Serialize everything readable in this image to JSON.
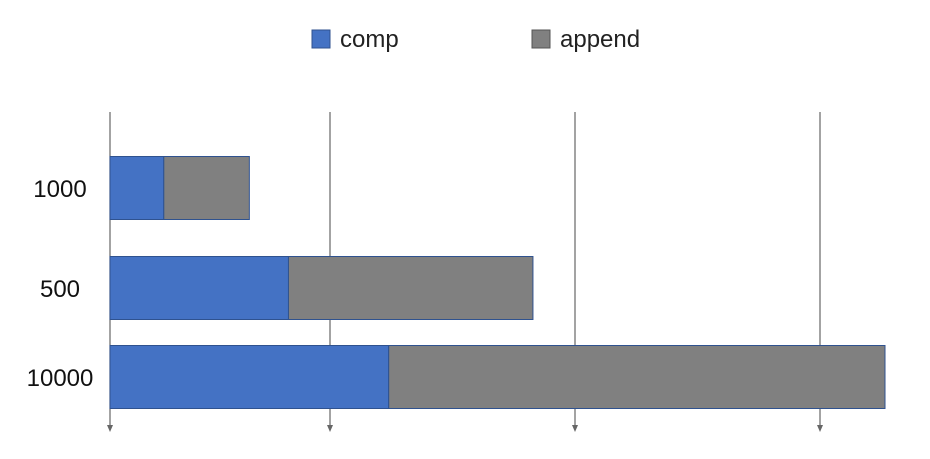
{
  "chart_data": {
    "type": "bar",
    "orientation": "horizontal",
    "stacked": true,
    "categories": [
      "1000",
      "500",
      "10000"
    ],
    "series": [
      {
        "name": "comp",
        "values": [
          22,
          73,
          114
        ],
        "color": "#4472C4"
      },
      {
        "name": "append",
        "values": [
          35,
          100,
          203
        ],
        "color": "#808080"
      }
    ],
    "xlim": [
      0,
      317
    ],
    "grid": true,
    "legend": "top-center",
    "title": "",
    "xlabel": "",
    "ylabel": ""
  },
  "colors": {
    "axis": "#666666",
    "grid": "#666666",
    "bar_border": "#2F528F"
  }
}
